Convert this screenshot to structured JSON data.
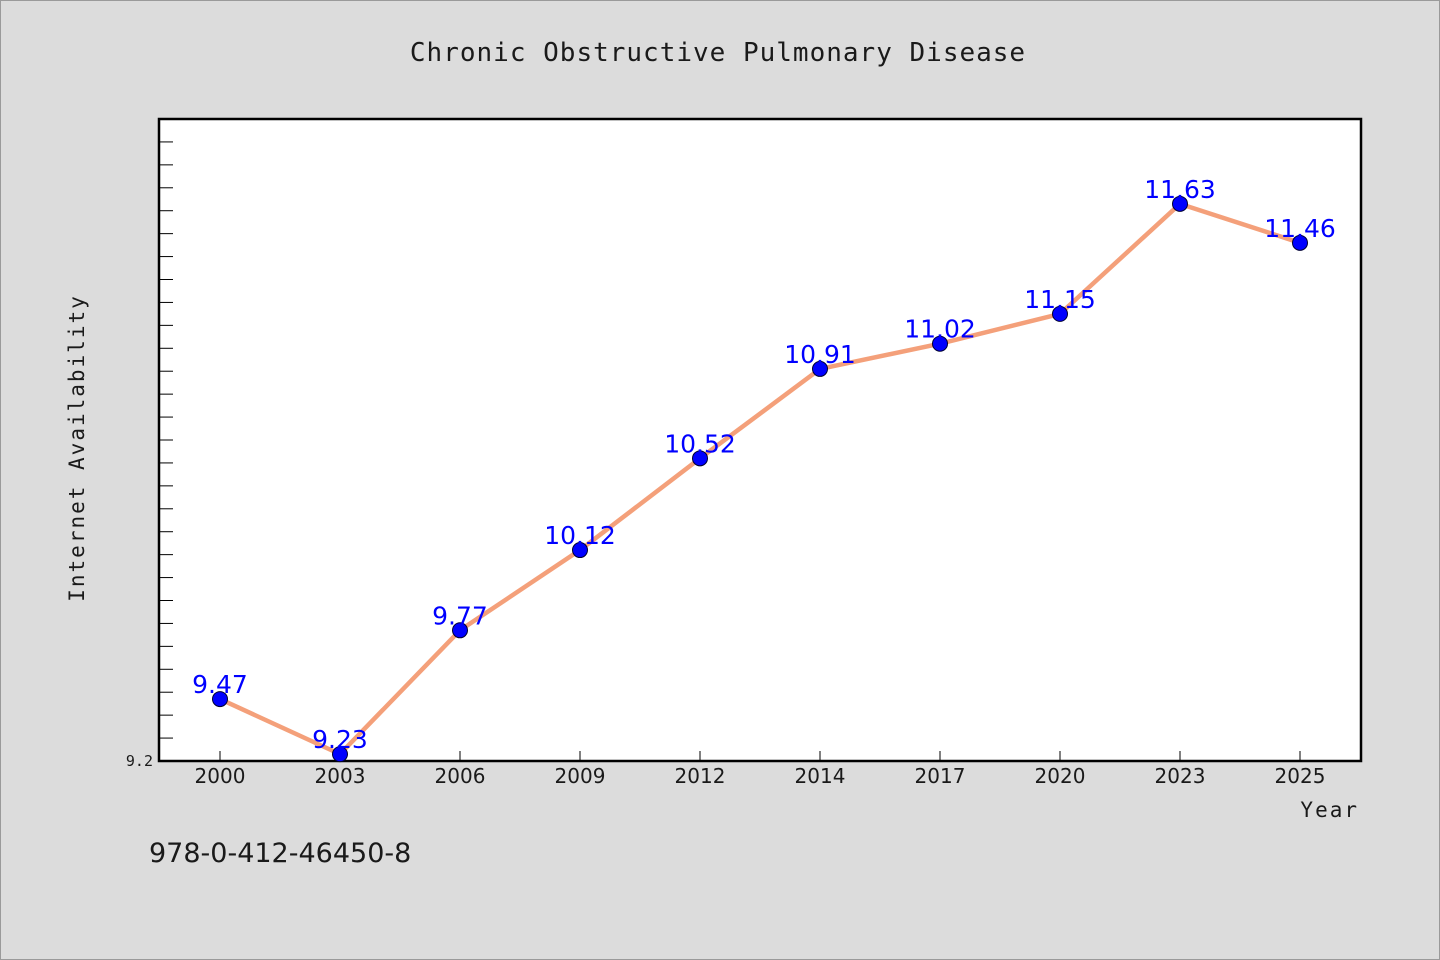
{
  "chart_data": {
    "type": "line",
    "title": "Chronic Obstructive Pulmonary Disease",
    "xlabel": "Year",
    "ylabel": "Internet Availability",
    "categories": [
      "2000",
      "2003",
      "2006",
      "2009",
      "2012",
      "2014",
      "2017",
      "2020",
      "2023",
      "2025"
    ],
    "series": [
      {
        "values": [
          9.47,
          9.23,
          9.77,
          10.12,
          10.52,
          10.91,
          11.02,
          11.15,
          11.63,
          11.46
        ],
        "line_color": "#f4a07a",
        "marker_color": "#0000ff"
      }
    ],
    "ylim": [
      9.2,
      12.0
    ],
    "ytick_labels": [
      "9.2"
    ],
    "data_labels": [
      "9.47",
      "9.23",
      "9.77",
      "10.12",
      "10.52",
      "10.91",
      "11.02",
      "11.15",
      "11.63",
      "11.46"
    ],
    "grid": false,
    "legend": "none"
  },
  "footer": {
    "isbn": "978-0-412-46450-8"
  },
  "colors": {
    "background": "#dcdcdc",
    "plot_background": "#ffffff",
    "data_label": "#0000ff"
  }
}
